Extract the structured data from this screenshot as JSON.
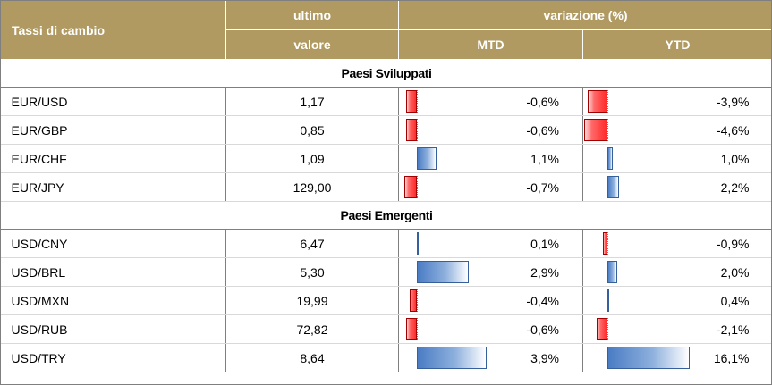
{
  "header": {
    "col1": "Tassi di cambio",
    "col2_line1": "ultimo",
    "col2_line2": "valore",
    "variation": "variazione (%)",
    "mtd": "MTD",
    "ytd": "YTD"
  },
  "colors": {
    "header_bg": "#b09a62",
    "negative_bar": "#ff3b3b",
    "positive_bar": "#6b96d1"
  },
  "sections": [
    {
      "title": "Paesi Sviluppati",
      "rows": [
        {
          "pair": "EUR/USD",
          "last": "1,17",
          "mtd": "-0,6%",
          "mtd_value": -0.6,
          "ytd": "-3,9%",
          "ytd_value": -3.9
        },
        {
          "pair": "EUR/GBP",
          "last": "0,85",
          "mtd": "-0,6%",
          "mtd_value": -0.6,
          "ytd": "-4,6%",
          "ytd_value": -4.6
        },
        {
          "pair": "EUR/CHF",
          "last": "1,09",
          "mtd": "1,1%",
          "mtd_value": 1.1,
          "ytd": "1,0%",
          "ytd_value": 1.0
        },
        {
          "pair": "EUR/JPY",
          "last": "129,00",
          "mtd": "-0,7%",
          "mtd_value": -0.7,
          "ytd": "2,2%",
          "ytd_value": 2.2
        }
      ]
    },
    {
      "title": "Paesi Emergenti",
      "rows": [
        {
          "pair": "USD/CNY",
          "last": "6,47",
          "mtd": "0,1%",
          "mtd_value": 0.1,
          "ytd": "-0,9%",
          "ytd_value": -0.9
        },
        {
          "pair": "USD/BRL",
          "last": "5,30",
          "mtd": "2,9%",
          "mtd_value": 2.9,
          "ytd": "2,0%",
          "ytd_value": 2.0
        },
        {
          "pair": "USD/MXN",
          "last": "19,99",
          "mtd": "-0,4%",
          "mtd_value": -0.4,
          "ytd": "0,4%",
          "ytd_value": 0.4
        },
        {
          "pair": "USD/RUB",
          "last": "72,82",
          "mtd": "-0,6%",
          "mtd_value": -0.6,
          "ytd": "-2,1%",
          "ytd_value": -2.1
        },
        {
          "pair": "USD/TRY",
          "last": "8,64",
          "mtd": "3,9%",
          "mtd_value": 3.9,
          "ytd": "16,1%",
          "ytd_value": 16.1
        }
      ]
    }
  ]
}
